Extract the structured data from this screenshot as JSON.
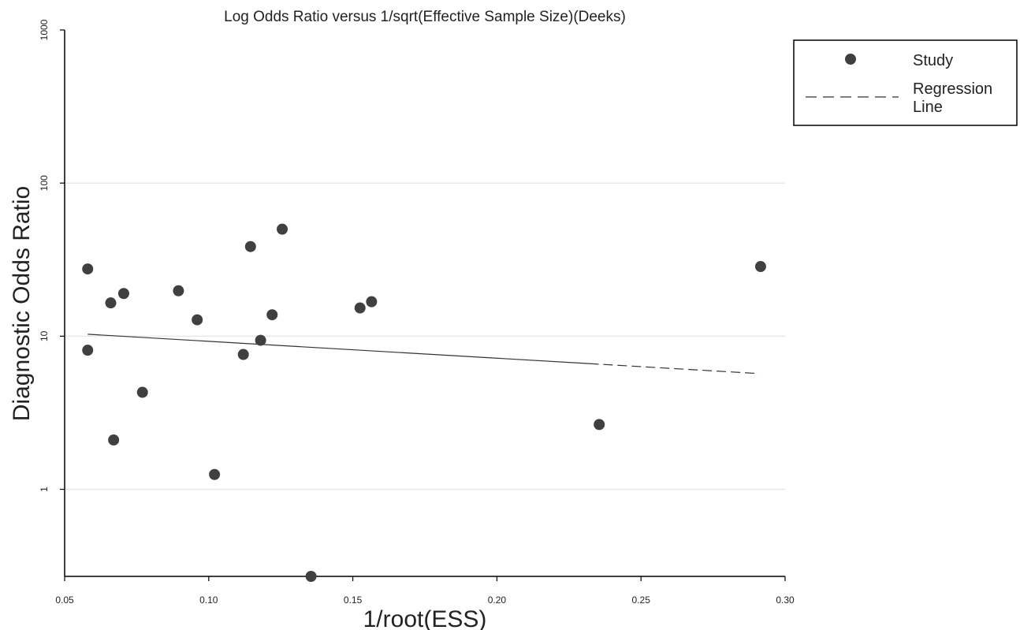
{
  "chart_data": {
    "type": "scatter",
    "title": "Log Odds Ratio versus 1/sqrt(Effective Sample Size)(Deeks)",
    "xlabel": "1/root(ESS)",
    "ylabel": "Diagnostic Odds Ratio",
    "x_ticks": [
      "0.05",
      "0.10",
      "0.15",
      "0.20",
      "0.25",
      "0.30"
    ],
    "y_ticks": [
      "1",
      "10",
      "100",
      "1000"
    ],
    "xlim": [
      0.05,
      0.3
    ],
    "ylim": [
      0.27,
      1000
    ],
    "yscale": "log",
    "grid": "horizontal",
    "legend_position": "top-right outside",
    "colors": {
      "marker": "#404040",
      "line": "#333333",
      "grid": "#e8e8e8",
      "axis": "#000000"
    },
    "series": [
      {
        "name": "Study",
        "marker": "circle",
        "points": [
          [
            0.058,
            27.5
          ],
          [
            0.058,
            8.1
          ],
          [
            0.066,
            16.5
          ],
          [
            0.067,
            2.1
          ],
          [
            0.0705,
            19.0
          ],
          [
            0.077,
            4.3
          ],
          [
            0.0895,
            19.8
          ],
          [
            0.096,
            12.8
          ],
          [
            0.102,
            1.25
          ],
          [
            0.112,
            7.6
          ],
          [
            0.1145,
            38.5
          ],
          [
            0.118,
            9.4
          ],
          [
            0.122,
            13.8
          ],
          [
            0.1255,
            50.0
          ],
          [
            0.1355,
            0.27
          ],
          [
            0.1525,
            15.3
          ],
          [
            0.1565,
            16.8
          ],
          [
            0.2355,
            2.65
          ],
          [
            0.2915,
            28.5
          ]
        ]
      },
      {
        "name": "Regression Line",
        "type": "line",
        "style": "solid to dashed",
        "points": [
          [
            0.058,
            10.3
          ],
          [
            0.291,
            5.7
          ]
        ]
      }
    ],
    "legend": [
      "Study",
      "Regression",
      "Line"
    ]
  }
}
